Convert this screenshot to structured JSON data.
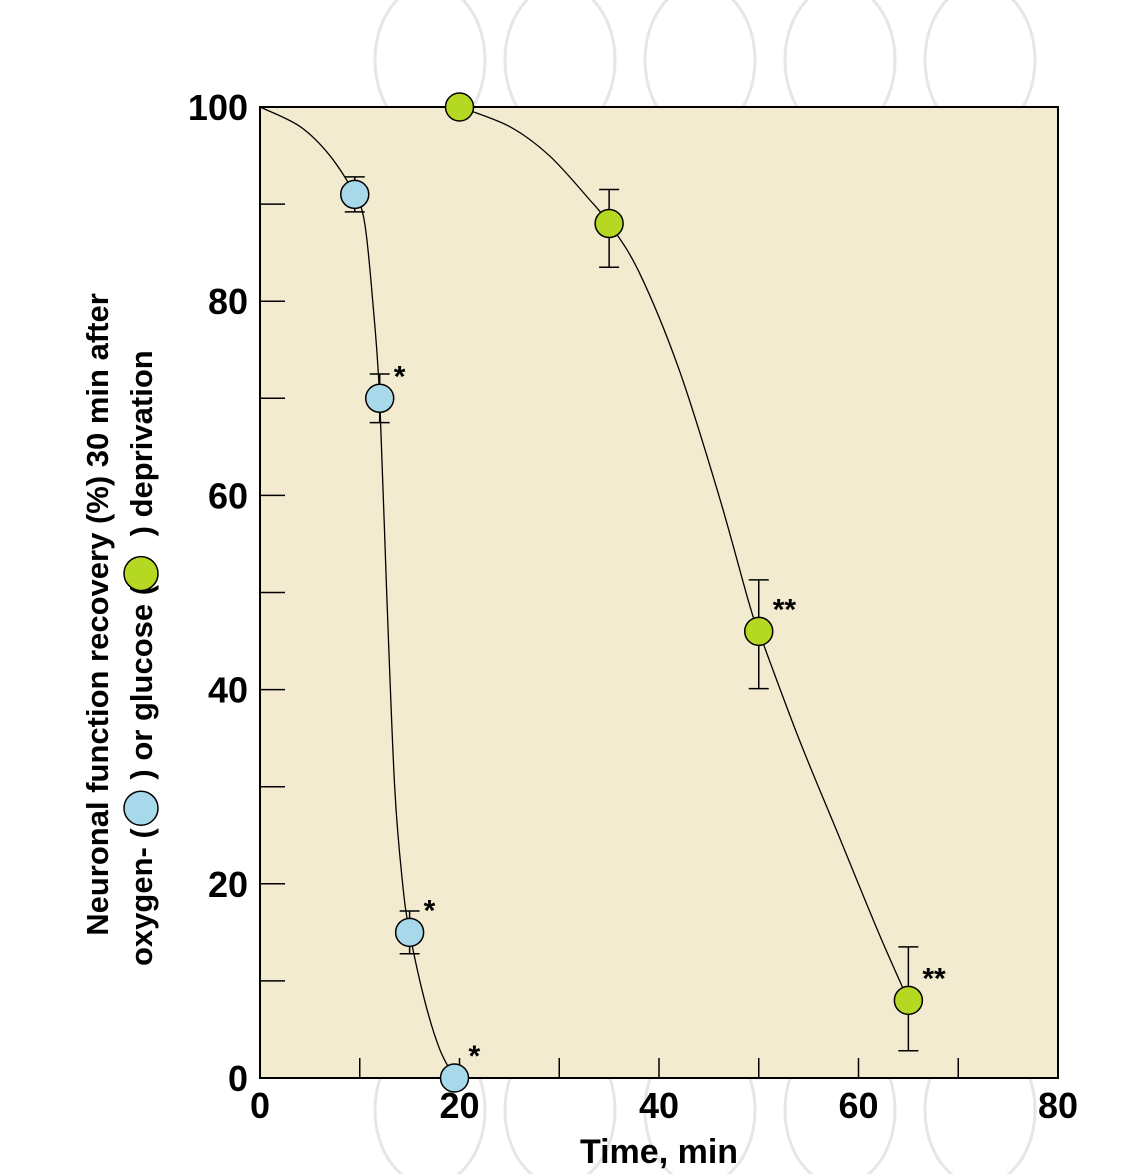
{
  "chart_data": {
    "type": "scatter",
    "title": "",
    "xlabel": "Time, min",
    "ylabel_lines": [
      "Neuronal function recovery (%) 30 min after",
      "oxygen- (",
      ") or glucose (",
      ") deprivation"
    ],
    "xlim": [
      0,
      80
    ],
    "ylim": [
      0,
      100
    ],
    "x_major_ticks": [
      0,
      20,
      40,
      60,
      80
    ],
    "x_minor_ticks": [
      10,
      30,
      50,
      70
    ],
    "y_major_ticks": [
      0,
      20,
      40,
      60,
      80,
      100
    ],
    "y_minor_ticks": [
      10,
      30,
      50,
      70,
      90
    ],
    "background_color": "#f3ebd0",
    "series": [
      {
        "color": "#a8d9ea",
        "points": [
          {
            "x": 9.5,
            "y": 91,
            "err_up": 1.8,
            "err_down": 1.8,
            "sig": ""
          },
          {
            "x": 12,
            "y": 70,
            "err_up": 2.5,
            "err_down": 2.5,
            "sig": "*"
          },
          {
            "x": 15,
            "y": 15,
            "err_up": 2.2,
            "err_down": 2.2,
            "sig": "*"
          },
          {
            "x": 19.5,
            "y": 0,
            "err_up": 0,
            "err_down": 0,
            "sig": "*"
          }
        ],
        "curve": [
          [
            0,
            100
          ],
          [
            4,
            98
          ],
          [
            7,
            95
          ],
          [
            9.5,
            91
          ],
          [
            10.5,
            88
          ],
          [
            11.3,
            80
          ],
          [
            12,
            70
          ],
          [
            12.7,
            50
          ],
          [
            13.5,
            30
          ],
          [
            14.3,
            20
          ],
          [
            15,
            15
          ],
          [
            16.5,
            8
          ],
          [
            18,
            3
          ],
          [
            19.5,
            0
          ]
        ]
      },
      {
        "color": "#b5d822",
        "points": [
          {
            "x": 20,
            "y": 100,
            "err_up": 0,
            "err_down": 0,
            "sig": ""
          },
          {
            "x": 35,
            "y": 88,
            "err_up": 3.5,
            "err_down": 4.5,
            "sig": ""
          },
          {
            "x": 50,
            "y": 46,
            "err_up": 5.3,
            "err_down": 5.9,
            "sig": "**"
          },
          {
            "x": 65,
            "y": 8,
            "err_up": 5.5,
            "err_down": 5.2,
            "sig": "**"
          }
        ],
        "curve": [
          [
            20,
            100
          ],
          [
            25,
            98
          ],
          [
            29,
            95
          ],
          [
            33,
            90.5
          ],
          [
            35,
            88
          ],
          [
            38,
            83
          ],
          [
            42,
            73
          ],
          [
            46,
            60
          ],
          [
            49,
            49
          ],
          [
            50,
            46
          ],
          [
            54,
            35
          ],
          [
            58,
            25
          ],
          [
            62,
            15
          ],
          [
            65,
            8
          ]
        ]
      }
    ]
  }
}
